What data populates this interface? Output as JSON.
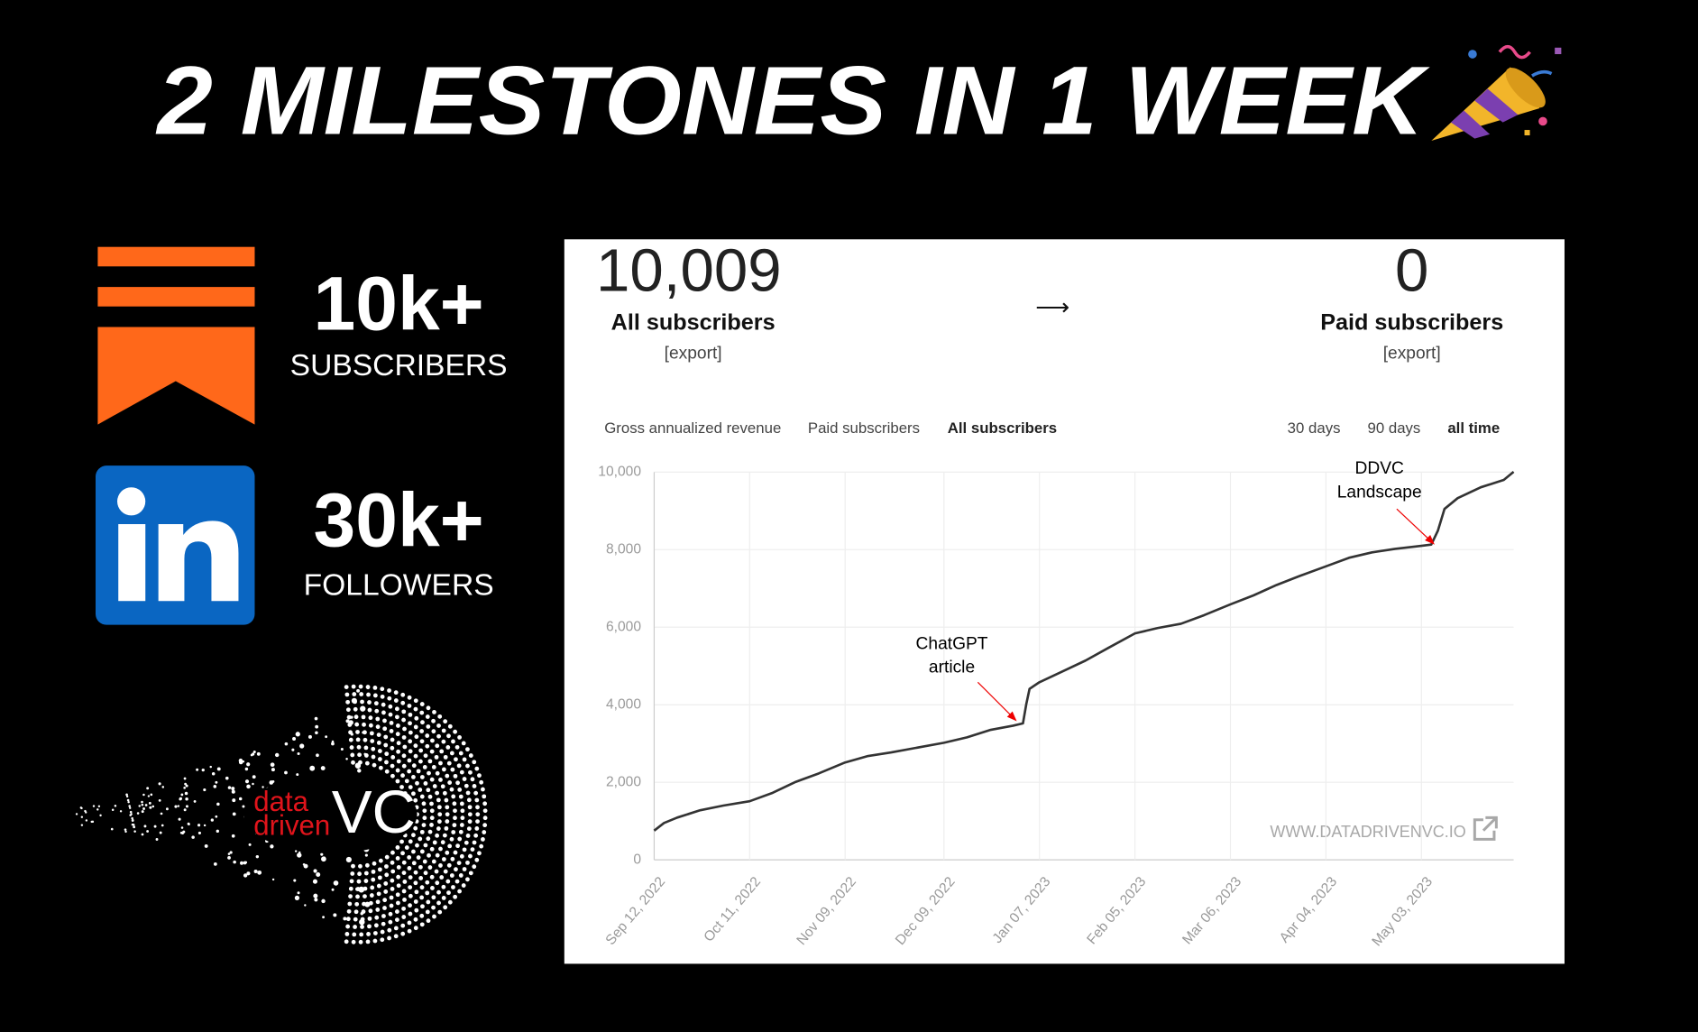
{
  "headline": "2 MILESTONES IN 1 WEEK",
  "stats": [
    {
      "value": "10k+",
      "label": "SUBSCRIBERS"
    },
    {
      "value": "30k+",
      "label": "FOLLOWERS"
    }
  ],
  "logo": {
    "line1": "data",
    "line2": "driven",
    "mark": "VC"
  },
  "panel": {
    "all_count": "10,009",
    "all_label": "All subscribers",
    "all_export": "[export]",
    "arrow": "⟶",
    "paid_count": "0",
    "paid_label": "Paid subscribers",
    "paid_export": "[export]",
    "tabs": [
      "Gross annualized revenue",
      "Paid subscribers",
      "All subscribers"
    ],
    "ranges": [
      "30 days",
      "90 days",
      "all time"
    ],
    "watermark": "WWW.DATADRIVENVC.IO"
  },
  "chart_data": {
    "type": "line",
    "color": "#333333",
    "grid": true,
    "x": [
      "2022-09-12",
      "2022-09-15",
      "2022-09-19",
      "2022-09-26",
      "2022-10-03",
      "2022-10-11",
      "2022-10-18",
      "2022-10-25",
      "2022-11-01",
      "2022-11-09",
      "2022-11-16",
      "2022-11-23",
      "2022-11-30",
      "2022-12-09",
      "2022-12-16",
      "2022-12-23",
      "2022-12-30",
      "2023-01-02",
      "2023-01-03",
      "2023-01-04",
      "2023-01-07",
      "2023-01-14",
      "2023-01-21",
      "2023-01-28",
      "2023-02-05",
      "2023-02-12",
      "2023-02-19",
      "2023-02-26",
      "2023-03-06",
      "2023-03-13",
      "2023-03-20",
      "2023-03-27",
      "2023-04-04",
      "2023-04-11",
      "2023-04-18",
      "2023-04-25",
      "2023-05-03",
      "2023-05-06",
      "2023-05-08",
      "2023-05-10",
      "2023-05-14",
      "2023-05-21",
      "2023-05-28",
      "2023-05-31"
    ],
    "values": [
      750,
      950,
      1090,
      1280,
      1400,
      1510,
      1730,
      2010,
      2230,
      2510,
      2680,
      2770,
      2880,
      3020,
      3160,
      3350,
      3460,
      3520,
      4020,
      4410,
      4580,
      4860,
      5140,
      5470,
      5840,
      5980,
      6090,
      6310,
      6590,
      6820,
      7090,
      7320,
      7570,
      7790,
      7930,
      8020,
      8100,
      8130,
      8490,
      9050,
      9330,
      9610,
      9800,
      10009
    ],
    "xlim": [
      "2022-09-12",
      "2023-05-31"
    ],
    "xticks": [
      {
        "value": "2022-09-12",
        "label": "Sep 12, 2022"
      },
      {
        "value": "2022-10-11",
        "label": "Oct 11, 2022"
      },
      {
        "value": "2022-11-09",
        "label": "Nov 09, 2022"
      },
      {
        "value": "2022-12-09",
        "label": "Dec 09, 2022"
      },
      {
        "value": "2023-01-07",
        "label": "Jan 07, 2023"
      },
      {
        "value": "2023-02-05",
        "label": "Feb 05, 2023"
      },
      {
        "value": "2023-03-06",
        "label": "Mar 06, 2023"
      },
      {
        "value": "2023-04-04",
        "label": "Apr 04, 2023"
      },
      {
        "value": "2023-05-03",
        "label": "May 03, 2023"
      }
    ],
    "ylim": [
      0,
      10000
    ],
    "yticks": [
      0,
      {
        "value": 2000,
        "label": "2,000"
      },
      {
        "value": 4000,
        "label": "4,000"
      },
      {
        "value": 6000,
        "label": "6,000"
      },
      {
        "value": 8000,
        "label": "8,000"
      },
      {
        "value": 10000,
        "label": "10,000"
      }
    ],
    "annotations": [
      {
        "lines": [
          "ChatGPT",
          "article"
        ]
      },
      {
        "lines": [
          "DDVC",
          "Landscape"
        ]
      }
    ]
  }
}
